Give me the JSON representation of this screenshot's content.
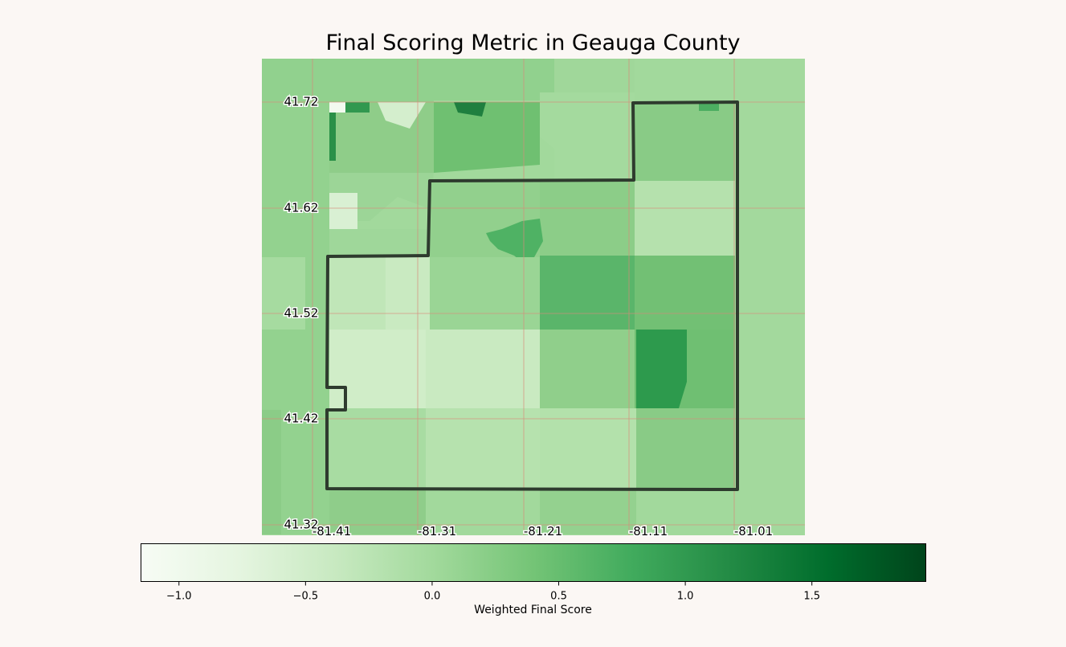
{
  "title": "Final Scoring Metric in Geauga County",
  "map": {
    "lat_ticks": [
      "41.72",
      "41.62",
      "41.52",
      "41.42",
      "41.32"
    ],
    "lon_ticks": [
      "-81.41",
      "-81.31",
      "-81.21",
      "-81.11",
      "-81.01"
    ],
    "grid_color": "#d98a7a",
    "boundary_color": "#2e3b2e"
  },
  "colorbar": {
    "label": "Weighted Final Score",
    "ticks": [
      "−1.0",
      "−0.5",
      "0.0",
      "0.5",
      "1.0",
      "1.5"
    ],
    "range": [
      -1.15,
      1.95
    ],
    "colormap": "Greens",
    "colors": [
      "#f7fcf5",
      "#e5f5e0",
      "#c7e9c0",
      "#a1d99b",
      "#74c476",
      "#41ab5d",
      "#238b45",
      "#006d2c",
      "#00441b"
    ]
  }
}
